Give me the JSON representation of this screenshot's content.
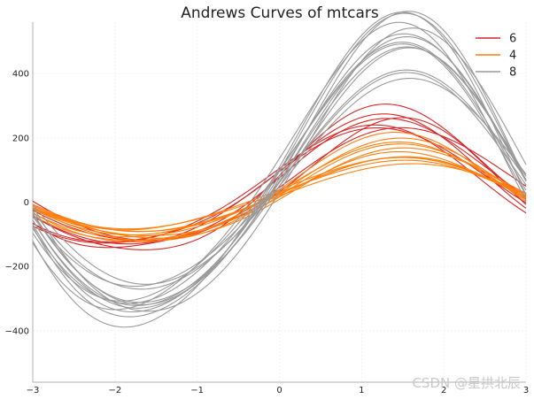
{
  "chart_data": {
    "type": "line",
    "title": "Andrews Curves of mtcars",
    "xlabel": "",
    "ylabel": "",
    "xlim": [
      -3,
      3
    ],
    "ylim": [
      -560,
      560
    ],
    "x_ticks": [
      -3,
      -2,
      -1,
      0,
      1,
      2,
      3
    ],
    "y_ticks": [
      -400,
      -200,
      0,
      200,
      400
    ],
    "grid": true,
    "legend_position": "top-right",
    "colors": {
      "6": "#d62728",
      "4": "#ff7f0e",
      "8": "#999999"
    },
    "legend": [
      "6",
      "4",
      "8"
    ],
    "curve_shape": "a1/sqrt(2) + a2*sin(t) + a3*cos(t) + a4*sin(2t) + a5*cos(2t)",
    "series": [
      {
        "name": "6",
        "coefficients": [
          [
            71.8,
            185,
            70,
            10,
            -25
          ],
          [
            71.8,
            185,
            40,
            15,
            -15
          ],
          [
            57.3,
            170,
            60,
            10,
            -5
          ],
          [
            64.8,
            175,
            10,
            5,
            -10
          ],
          [
            73.7,
            220,
            50,
            20,
            -20
          ],
          [
            55.8,
            165,
            80,
            10,
            -15
          ],
          [
            45.3,
            195,
            35,
            -5,
            -35
          ]
        ]
      },
      {
        "name": "4",
        "coefficients": [
          [
            33.2,
            160,
            20,
            0,
            -15
          ],
          [
            28.3,
            150,
            10,
            5,
            -10
          ],
          [
            22.8,
            120,
            15,
            -5,
            -5
          ],
          [
            41.0,
            165,
            30,
            5,
            -20
          ],
          [
            33.2,
            110,
            20,
            -5,
            -5
          ],
          [
            20.5,
            105,
            5,
            -5,
            0
          ],
          [
            27.6,
            115,
            10,
            0,
            -5
          ],
          [
            36.3,
            145,
            25,
            0,
            -15
          ],
          [
            26.1,
            140,
            0,
            5,
            -10
          ],
          [
            28.7,
            105,
            15,
            -5,
            -5
          ],
          [
            22.2,
            130,
            10,
            5,
            -10
          ]
        ]
      },
      {
        "name": "8",
        "coefficients": [
          [
            122.6,
            460,
            50,
            -10,
            -40
          ],
          [
            88.7,
            400,
            20,
            -5,
            -20
          ],
          [
            102.7,
            420,
            40,
            -5,
            -30
          ],
          [
            75.2,
            330,
            30,
            -10,
            -20
          ],
          [
            85.2,
            395,
            15,
            -10,
            -25
          ],
          [
            92.8,
            390,
            70,
            -15,
            -35
          ],
          [
            97.6,
            480,
            80,
            -15,
            -40
          ],
          [
            113.6,
            430,
            100,
            -15,
            -45
          ],
          [
            77.8,
            320,
            5,
            -5,
            -10
          ],
          [
            93.5,
            400,
            60,
            -10,
            -30
          ],
          [
            111.3,
            470,
            40,
            -20,
            -45
          ],
          [
            79.2,
            340,
            20,
            -5,
            -15
          ],
          [
            100.3,
            440,
            -10,
            -10,
            -30
          ],
          [
            91.2,
            420,
            30,
            -10,
            -30
          ]
        ]
      }
    ],
    "watermark": "CSDN @星拱北辰"
  }
}
